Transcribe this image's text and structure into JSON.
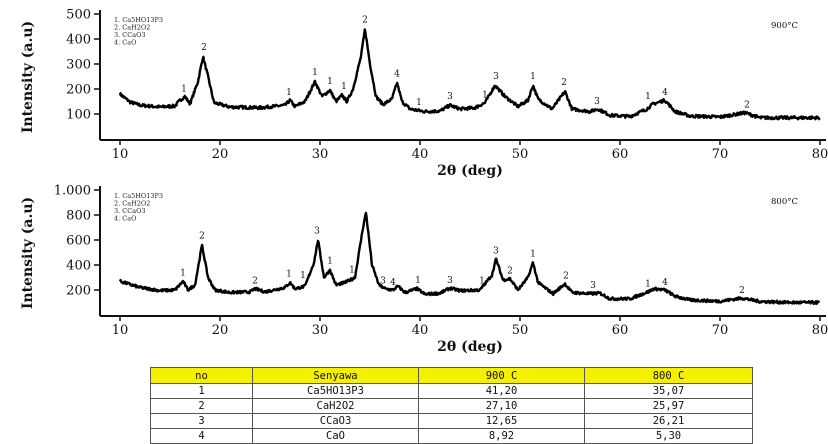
{
  "chart_data": [
    {
      "type": "line",
      "title": "",
      "annotation": "900°C",
      "xlabel": "2θ (deg)",
      "ylabel": "Intensity (a.u)",
      "xlim": [
        10,
        80
      ],
      "ylim": [
        0,
        500
      ],
      "xticks": [
        10,
        20,
        30,
        40,
        50,
        60,
        70,
        80
      ],
      "yticks": [
        100,
        200,
        300,
        400,
        500
      ],
      "ytick_labels": [
        "100",
        "200",
        "300",
        "400",
        "500"
      ],
      "legend": [
        "1. Ca5HO13P3",
        "2. CaH2O2",
        "3. CCaO3",
        "4. CaO"
      ],
      "legend_position": "top-left",
      "grid": false,
      "baseline": [
        [
          10,
          180
        ],
        [
          11,
          148
        ],
        [
          12,
          135
        ],
        [
          14,
          128
        ],
        [
          15.5,
          132
        ],
        [
          16,
          155
        ],
        [
          16.5,
          170
        ],
        [
          17,
          140
        ],
        [
          17.8,
          230
        ],
        [
          18.3,
          330
        ],
        [
          18.8,
          250
        ],
        [
          19.4,
          145
        ],
        [
          21,
          128
        ],
        [
          24,
          125
        ],
        [
          26.5,
          135
        ],
        [
          27,
          155
        ],
        [
          27.5,
          130
        ],
        [
          28.5,
          150
        ],
        [
          29.5,
          230
        ],
        [
          30.2,
          170
        ],
        [
          31,
          195
        ],
        [
          31.6,
          150
        ],
        [
          32.2,
          175
        ],
        [
          32.7,
          150
        ],
        [
          33.3,
          200
        ],
        [
          34.1,
          330
        ],
        [
          34.5,
          440
        ],
        [
          35,
          300
        ],
        [
          35.6,
          170
        ],
        [
          36.3,
          138
        ],
        [
          37.2,
          160
        ],
        [
          37.7,
          225
        ],
        [
          38.2,
          150
        ],
        [
          39,
          120
        ],
        [
          40.4,
          110
        ],
        [
          42,
          112
        ],
        [
          43,
          135
        ],
        [
          44,
          120
        ],
        [
          45.5,
          125
        ],
        [
          46.5,
          145
        ],
        [
          47.5,
          215
        ],
        [
          48.5,
          170
        ],
        [
          49.8,
          130
        ],
        [
          50.8,
          155
        ],
        [
          51.3,
          215
        ],
        [
          51.8,
          160
        ],
        [
          53.2,
          120
        ],
        [
          54.5,
          190
        ],
        [
          55.2,
          120
        ],
        [
          57,
          110
        ],
        [
          57.8,
          120
        ],
        [
          59,
          95
        ],
        [
          61,
          90
        ],
        [
          62.7,
          120
        ],
        [
          63.3,
          140
        ],
        [
          64.5,
          155
        ],
        [
          65.5,
          110
        ],
        [
          67,
          92
        ],
        [
          70,
          88
        ],
        [
          72.5,
          105
        ],
        [
          74,
          85
        ],
        [
          77,
          85
        ],
        [
          80,
          85
        ]
      ],
      "peak_labels": [
        {
          "x": 16.4,
          "y": 175,
          "label": "1"
        },
        {
          "x": 18.4,
          "y": 340,
          "label": "2"
        },
        {
          "x": 26.9,
          "y": 160,
          "label": "1"
        },
        {
          "x": 29.5,
          "y": 240,
          "label": "1"
        },
        {
          "x": 31,
          "y": 205,
          "label": "1"
        },
        {
          "x": 32.4,
          "y": 185,
          "label": "1"
        },
        {
          "x": 34.5,
          "y": 450,
          "label": "2"
        },
        {
          "x": 37.7,
          "y": 235,
          "label": "4"
        },
        {
          "x": 39.9,
          "y": 120,
          "label": "1"
        },
        {
          "x": 43,
          "y": 145,
          "label": "3"
        },
        {
          "x": 46.5,
          "y": 150,
          "label": "1"
        },
        {
          "x": 47.6,
          "y": 225,
          "label": "3"
        },
        {
          "x": 51.3,
          "y": 225,
          "label": "1"
        },
        {
          "x": 54.4,
          "y": 200,
          "label": "2"
        },
        {
          "x": 57.7,
          "y": 125,
          "label": "3"
        },
        {
          "x": 62.8,
          "y": 145,
          "label": "1"
        },
        {
          "x": 64.5,
          "y": 160,
          "label": "4"
        },
        {
          "x": 72.7,
          "y": 110,
          "label": "2"
        }
      ]
    },
    {
      "type": "line",
      "title": "",
      "annotation": "800°C",
      "xlabel": "2θ (deg)",
      "ylabel": "Intensity (a.u)",
      "xlim": [
        10,
        80
      ],
      "ylim": [
        0,
        1000
      ],
      "xticks": [
        10,
        20,
        30,
        40,
        50,
        60,
        70,
        80
      ],
      "yticks": [
        200,
        400,
        600,
        800,
        1000
      ],
      "ytick_labels": [
        "200",
        "400",
        "600",
        "800",
        "1.000"
      ],
      "legend": [
        "1. Ca5HO13P3",
        "2. CaH2O2",
        "3. CCaO3",
        "4. CaO"
      ],
      "legend_position": "top-left",
      "grid": false,
      "baseline": [
        [
          10,
          270
        ],
        [
          11,
          245
        ],
        [
          12,
          220
        ],
        [
          14,
          195
        ],
        [
          15.5,
          200
        ],
        [
          16.3,
          270
        ],
        [
          16.8,
          200
        ],
        [
          17.5,
          240
        ],
        [
          18.2,
          560
        ],
        [
          18.8,
          300
        ],
        [
          19.5,
          200
        ],
        [
          21,
          180
        ],
        [
          23,
          185
        ],
        [
          23.5,
          210
        ],
        [
          24.5,
          185
        ],
        [
          26.5,
          220
        ],
        [
          27,
          260
        ],
        [
          27.5,
          210
        ],
        [
          28.5,
          230
        ],
        [
          29.4,
          420
        ],
        [
          29.8,
          600
        ],
        [
          30.4,
          300
        ],
        [
          31,
          360
        ],
        [
          31.6,
          240
        ],
        [
          32.5,
          260
        ],
        [
          33.5,
          300
        ],
        [
          34.3,
          700
        ],
        [
          34.6,
          820
        ],
        [
          35.2,
          400
        ],
        [
          35.9,
          240
        ],
        [
          36.5,
          210
        ],
        [
          37.3,
          200
        ],
        [
          37.8,
          230
        ],
        [
          38.5,
          180
        ],
        [
          39.7,
          210
        ],
        [
          40.5,
          165
        ],
        [
          42,
          175
        ],
        [
          43,
          215
        ],
        [
          44,
          195
        ],
        [
          46,
          200
        ],
        [
          47.2,
          320
        ],
        [
          47.6,
          450
        ],
        [
          48.3,
          280
        ],
        [
          49,
          290
        ],
        [
          49.8,
          200
        ],
        [
          50.8,
          300
        ],
        [
          51.3,
          420
        ],
        [
          51.8,
          260
        ],
        [
          53.3,
          170
        ],
        [
          54.5,
          250
        ],
        [
          55.2,
          180
        ],
        [
          57,
          170
        ],
        [
          58,
          175
        ],
        [
          59,
          130
        ],
        [
          61,
          130
        ],
        [
          62.8,
          185
        ],
        [
          63.4,
          210
        ],
        [
          64.5,
          200
        ],
        [
          65.5,
          150
        ],
        [
          67,
          120
        ],
        [
          70,
          110
        ],
        [
          72.2,
          135
        ],
        [
          74,
          108
        ],
        [
          77,
          100
        ],
        [
          80,
          100
        ]
      ],
      "peak_labels": [
        {
          "x": 16.3,
          "y": 285,
          "label": "1"
        },
        {
          "x": 18.2,
          "y": 580,
          "label": "2"
        },
        {
          "x": 23.5,
          "y": 220,
          "label": "2"
        },
        {
          "x": 26.9,
          "y": 275,
          "label": "1"
        },
        {
          "x": 28.3,
          "y": 265,
          "label": "1"
        },
        {
          "x": 29.7,
          "y": 620,
          "label": "3"
        },
        {
          "x": 31,
          "y": 380,
          "label": "1"
        },
        {
          "x": 33.2,
          "y": 310,
          "label": "1"
        },
        {
          "x": 34.6,
          "y": 840
        },
        {
          "x": 36.3,
          "y": 220,
          "label": "3"
        },
        {
          "x": 37.3,
          "y": 210,
          "label": "4"
        },
        {
          "x": 39.8,
          "y": 225,
          "label": "1"
        },
        {
          "x": 43,
          "y": 225,
          "label": "3"
        },
        {
          "x": 46.2,
          "y": 220,
          "label": "1"
        },
        {
          "x": 47.6,
          "y": 460,
          "label": "3"
        },
        {
          "x": 49,
          "y": 300,
          "label": "2"
        },
        {
          "x": 51.3,
          "y": 435,
          "label": "1"
        },
        {
          "x": 54.6,
          "y": 260,
          "label": "2"
        },
        {
          "x": 57.3,
          "y": 185,
          "label": "3"
        },
        {
          "x": 62.8,
          "y": 195,
          "label": "1"
        },
        {
          "x": 64.5,
          "y": 210,
          "label": "4"
        },
        {
          "x": 72.2,
          "y": 145,
          "label": "2"
        }
      ]
    }
  ],
  "table": {
    "headers": [
      "no",
      "Senyawa",
      "900 C",
      "800 C"
    ],
    "rows": [
      [
        "1",
        "Ca5HO13P3",
        "41,20",
        "35,07"
      ],
      [
        "2",
        "CaH2O2",
        "27,10",
        "25,97"
      ],
      [
        "3",
        "CCaO3",
        "12,65",
        "26,21"
      ],
      [
        "4",
        "CaO",
        "8,92",
        "5,30"
      ]
    ],
    "header_color": "#f4f000"
  }
}
